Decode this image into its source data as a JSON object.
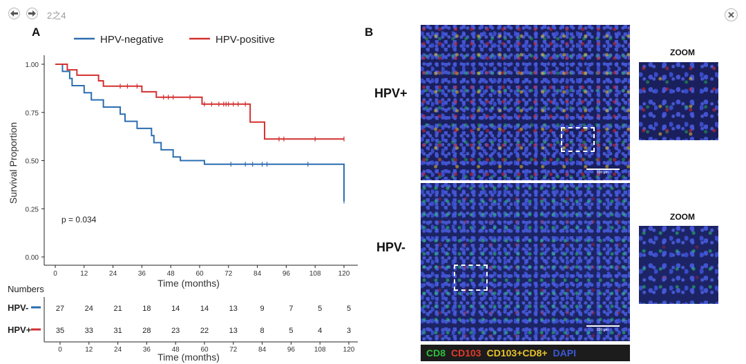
{
  "viewer": {
    "page_indicator": "2之4",
    "prev_icon": "arrow-left-icon",
    "next_icon": "arrow-right-icon",
    "close_icon": "close-icon"
  },
  "panel_a": {
    "letter": "A",
    "legend": [
      {
        "label": "HPV-negative",
        "color": "#2a6db0"
      },
      {
        "label": "HPV-positive",
        "color": "#d32f2f"
      }
    ],
    "pvalue": "p = 0.034",
    "numbers_title": "Numbers",
    "risk_table": [
      {
        "label": "HPV-",
        "color": "#2a6db0",
        "values": [
          "27",
          "24",
          "21",
          "18",
          "14",
          "14",
          "13",
          "9",
          "7",
          "5",
          "5"
        ]
      },
      {
        "label": "HPV+",
        "color": "#d32f2f",
        "values": [
          "35",
          "33",
          "31",
          "28",
          "23",
          "22",
          "13",
          "8",
          "5",
          "4",
          "3"
        ]
      }
    ]
  },
  "chart_data": {
    "type": "line",
    "title": "",
    "xlabel": "Time (months)",
    "ylabel": "Survival Proportion",
    "xlim": [
      0,
      120
    ],
    "ylim": [
      0,
      1
    ],
    "x_ticks": [
      "0",
      "12",
      "24",
      "36",
      "48",
      "60",
      "72",
      "84",
      "96",
      "108",
      "120"
    ],
    "y_ticks": [
      "0.00",
      "0.25",
      "0.50",
      "0.75",
      "1.00"
    ],
    "grid": false,
    "legend_position": "top",
    "series": [
      {
        "name": "HPV-negative",
        "color": "#2a6db0",
        "steps": [
          [
            0,
            1.0
          ],
          [
            3,
            0.963
          ],
          [
            6,
            0.926
          ],
          [
            7,
            0.889
          ],
          [
            12,
            0.852
          ],
          [
            15,
            0.815
          ],
          [
            20,
            0.778
          ],
          [
            27,
            0.741
          ],
          [
            29,
            0.704
          ],
          [
            34,
            0.667
          ],
          [
            40,
            0.63
          ],
          [
            41,
            0.593
          ],
          [
            44,
            0.556
          ],
          [
            49,
            0.519
          ],
          [
            52,
            0.5
          ],
          [
            62,
            0.481
          ],
          [
            120,
            0.481
          ],
          [
            120,
            0.29
          ]
        ],
        "censored": [
          [
            73,
            0.481
          ],
          [
            79,
            0.481
          ],
          [
            82,
            0.481
          ],
          [
            86,
            0.481
          ],
          [
            88,
            0.481
          ],
          [
            105,
            0.481
          ],
          [
            120,
            0.29
          ]
        ]
      },
      {
        "name": "HPV-positive",
        "color": "#d32f2f",
        "steps": [
          [
            0,
            1.0
          ],
          [
            5,
            0.971
          ],
          [
            9,
            0.943
          ],
          [
            18,
            0.914
          ],
          [
            20,
            0.886
          ],
          [
            36,
            0.857
          ],
          [
            42,
            0.829
          ],
          [
            61,
            0.793
          ],
          [
            81,
            0.7
          ],
          [
            87,
            0.612
          ],
          [
            120,
            0.612
          ]
        ],
        "censored": [
          [
            27,
            0.886
          ],
          [
            30,
            0.886
          ],
          [
            34,
            0.886
          ],
          [
            45,
            0.829
          ],
          [
            47,
            0.829
          ],
          [
            49,
            0.829
          ],
          [
            56,
            0.829
          ],
          [
            62,
            0.793
          ],
          [
            65,
            0.793
          ],
          [
            68,
            0.793
          ],
          [
            70,
            0.793
          ],
          [
            71,
            0.793
          ],
          [
            72,
            0.793
          ],
          [
            74,
            0.793
          ],
          [
            76,
            0.793
          ],
          [
            79,
            0.793
          ],
          [
            93,
            0.612
          ],
          [
            95,
            0.612
          ],
          [
            108,
            0.612
          ],
          [
            120,
            0.612
          ]
        ]
      }
    ]
  },
  "panel_b": {
    "letter": "B",
    "row_labels": [
      "HPV+",
      "HPV-"
    ],
    "zoom_label": "ZOOM",
    "scale_text": "100 μm",
    "stain_legend": [
      {
        "label": "CD8",
        "color": "#2fbf3a"
      },
      {
        "label": "CD103",
        "color": "#e33b2b"
      },
      {
        "label": "CD103+CD8+",
        "color": "#e8c22a"
      },
      {
        "label": "DAPI",
        "color": "#3b58d8"
      }
    ]
  }
}
